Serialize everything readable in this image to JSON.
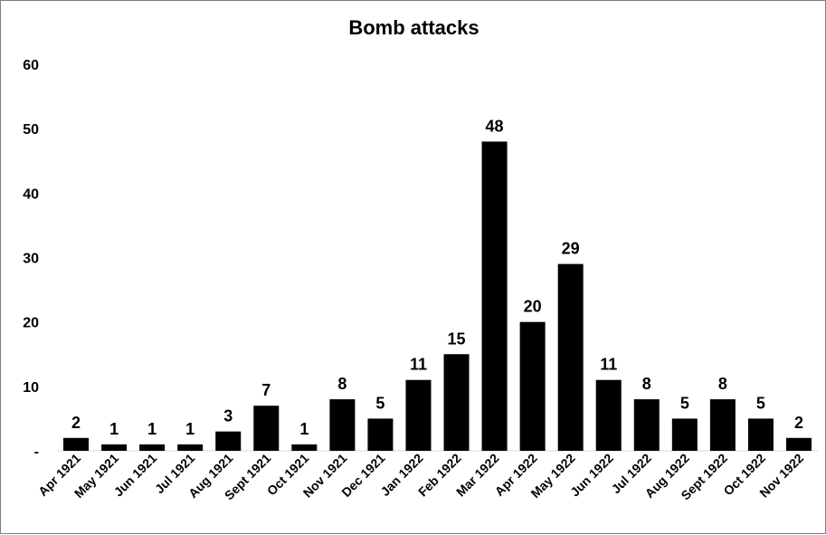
{
  "chart_data": {
    "type": "bar",
    "title": "Bomb attacks",
    "xlabel": "",
    "ylabel": "",
    "ylim": [
      0,
      60
    ],
    "yticks": [
      {
        "value": 0,
        "label": "-"
      },
      {
        "value": 10,
        "label": "10"
      },
      {
        "value": 20,
        "label": "20"
      },
      {
        "value": 30,
        "label": "30"
      },
      {
        "value": 40,
        "label": "40"
      },
      {
        "value": 50,
        "label": "50"
      },
      {
        "value": 60,
        "label": "60"
      }
    ],
    "grid": false,
    "legend": "none",
    "bar_color": "#000000",
    "categories": [
      "Apr 1921",
      "May 1921",
      "Jun 1921",
      "Jul 1921",
      "Aug 1921",
      "Sept 1921",
      "Oct 1921",
      "Nov 1921",
      "Dec 1921",
      "Jan 1922",
      "Feb 1922",
      "Mar 1922",
      "Apr 1922",
      "May 1922",
      "Jun 1922",
      "Jul 1922",
      "Aug 1922",
      "Sept 1922",
      "Oct 1922",
      "Nov 1922"
    ],
    "values": [
      2,
      1,
      1,
      1,
      3,
      7,
      1,
      8,
      5,
      11,
      15,
      48,
      20,
      29,
      11,
      8,
      5,
      8,
      5,
      2
    ]
  }
}
